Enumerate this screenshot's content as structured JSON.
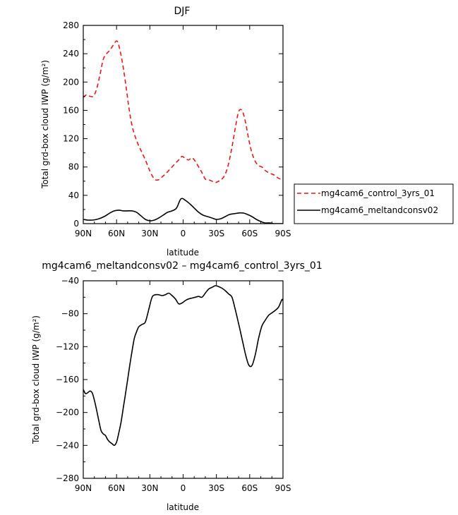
{
  "chart_data": [
    {
      "type": "line",
      "title": "DJF",
      "xlabel": "latitude",
      "ylabel": "Total grd-box cloud IWP (g/m²)",
      "xlim": [
        90,
        -90
      ],
      "ylim": [
        0,
        280
      ],
      "x_ticks": [
        90,
        60,
        30,
        0,
        -30,
        -60,
        -90
      ],
      "x_tick_labels": [
        "90N",
        "60N",
        "30N",
        "0",
        "30S",
        "60S",
        "90S"
      ],
      "y_ticks": [
        0,
        40,
        80,
        120,
        160,
        200,
        240,
        280
      ],
      "y_tick_labels": [
        "0",
        "40",
        "80",
        "120",
        "160",
        "200",
        "240",
        "280"
      ],
      "legend_position": "right",
      "series": [
        {
          "name": "mg4cam6_control_3yrs_01",
          "color": "#e31a1c",
          "dash": "dashed",
          "x": [
            90,
            87,
            84,
            81,
            78,
            75,
            72,
            69,
            66,
            63,
            60,
            58,
            55,
            52,
            49,
            46,
            43,
            40,
            37,
            34,
            31,
            28,
            25,
            22,
            19,
            16,
            13,
            10,
            7,
            4,
            1,
            -2,
            -5,
            -8,
            -11,
            -14,
            -17,
            -20,
            -23,
            -26,
            -29,
            -32,
            -35,
            -38,
            -41,
            -44,
            -47,
            -50,
            -53,
            -56,
            -59,
            -62,
            -65,
            -68,
            -71,
            -74,
            -77,
            -80,
            -83,
            -86,
            -89,
            -90
          ],
          "y": [
            178,
            182,
            180,
            180,
            190,
            210,
            232,
            240,
            245,
            252,
            258,
            252,
            230,
            200,
            165,
            138,
            122,
            110,
            100,
            90,
            78,
            68,
            62,
            62,
            66,
            70,
            75,
            80,
            85,
            90,
            95,
            92,
            90,
            93,
            88,
            80,
            72,
            63,
            62,
            60,
            58,
            60,
            63,
            70,
            85,
            108,
            135,
            158,
            160,
            145,
            120,
            100,
            88,
            82,
            80,
            75,
            72,
            70,
            68,
            64,
            63,
            64
          ]
        },
        {
          "name": "mg4cam6_meltandconsv02",
          "color": "#000000",
          "dash": "solid",
          "x": [
            90,
            86,
            82,
            78,
            74,
            70,
            66,
            62,
            58,
            54,
            50,
            46,
            42,
            38,
            34,
            30,
            26,
            22,
            18,
            14,
            10,
            6,
            2,
            -2,
            -6,
            -10,
            -14,
            -18,
            -22,
            -26,
            -30,
            -34,
            -38,
            -42,
            -46,
            -50,
            -54,
            -58,
            -62,
            -66,
            -70,
            -74,
            -78,
            -82,
            -86,
            -90
          ],
          "y": [
            6,
            5,
            5,
            6,
            8,
            11,
            15,
            18,
            19,
            18,
            18,
            18,
            16,
            11,
            6,
            4,
            5,
            8,
            12,
            16,
            18,
            22,
            35,
            33,
            28,
            22,
            16,
            12,
            10,
            8,
            6,
            7,
            10,
            13,
            14,
            15,
            15,
            13,
            10,
            6,
            3,
            1,
            1,
            0,
            0,
            0
          ]
        }
      ]
    },
    {
      "type": "line",
      "title": "mg4cam6_meltandconsv02 – mg4cam6_control_3yrs_01",
      "xlabel": "latitude",
      "ylabel": "Total grd-box cloud IWP (g/m²)",
      "xlim": [
        90,
        -90
      ],
      "ylim": [
        -280,
        -40
      ],
      "x_ticks": [
        90,
        60,
        30,
        0,
        -30,
        -60,
        -90
      ],
      "x_tick_labels": [
        "90N",
        "60N",
        "30N",
        "0",
        "30S",
        "60S",
        "90S"
      ],
      "y_ticks": [
        -280,
        -240,
        -200,
        -160,
        -120,
        -80,
        -40
      ],
      "y_tick_labels": [
        "−280",
        "−240",
        "−200",
        "−160",
        "−120",
        "−80",
        "−40"
      ],
      "series": [
        {
          "color": "#000000",
          "dash": "solid",
          "x": [
            90,
            88,
            86,
            84,
            82,
            80,
            78,
            76,
            74,
            72,
            70,
            68,
            66,
            64,
            62,
            60,
            58,
            56,
            54,
            52,
            50,
            48,
            46,
            44,
            42,
            40,
            37,
            34,
            31,
            28,
            25,
            22,
            19,
            16,
            13,
            10,
            7,
            4,
            1,
            -2,
            -5,
            -8,
            -11,
            -14,
            -17,
            -20,
            -23,
            -26,
            -29,
            -32,
            -35,
            -38,
            -41,
            -44,
            -47,
            -50,
            -53,
            -56,
            -59,
            -62,
            -65,
            -68,
            -71,
            -74,
            -77,
            -80,
            -83,
            -86,
            -89,
            -90
          ],
          "y": [
            -172,
            -177,
            -176,
            -174,
            -176,
            -185,
            -197,
            -210,
            -222,
            -226,
            -228,
            -233,
            -236,
            -238,
            -240,
            -236,
            -225,
            -212,
            -195,
            -178,
            -160,
            -142,
            -125,
            -110,
            -102,
            -96,
            -93,
            -90,
            -75,
            -60,
            -57,
            -57,
            -58,
            -57,
            -55,
            -58,
            -62,
            -68,
            -67,
            -64,
            -62,
            -61,
            -60,
            -59,
            -60,
            -55,
            -50,
            -48,
            -46,
            -47,
            -49,
            -52,
            -56,
            -60,
            -75,
            -92,
            -110,
            -128,
            -142,
            -143,
            -130,
            -110,
            -95,
            -88,
            -82,
            -79,
            -76,
            -72,
            -63,
            -64
          ]
        }
      ]
    }
  ]
}
